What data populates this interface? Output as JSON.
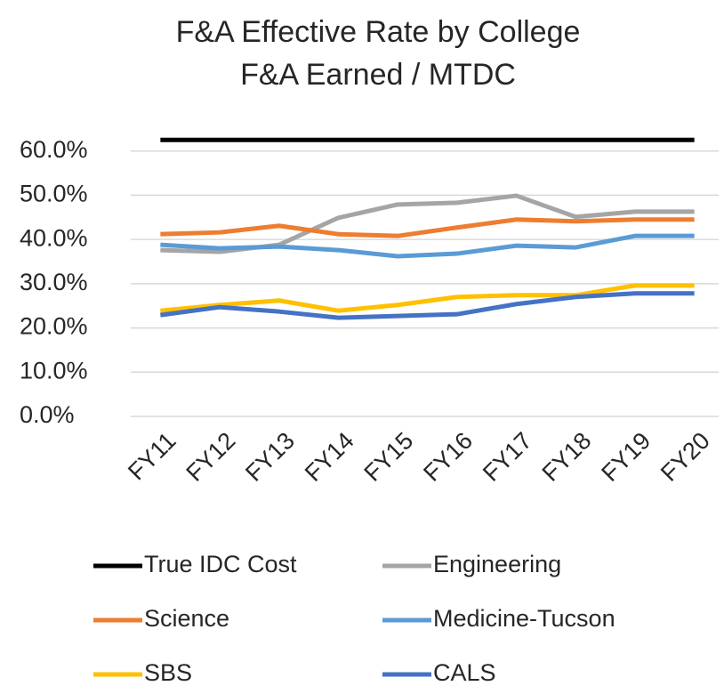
{
  "chart_data": {
    "type": "line",
    "title": "F&A Effective Rate by College",
    "subtitle": "F&A Earned / MTDC",
    "categories": [
      "FY11",
      "FY12",
      "FY13",
      "FY14",
      "FY15",
      "FY16",
      "FY17",
      "FY18",
      "FY19",
      "FY20"
    ],
    "series": [
      {
        "name": "True IDC Cost",
        "color": "#000000",
        "values": [
          62.5,
          62.5,
          62.5,
          62.5,
          62.5,
          62.5,
          62.5,
          62.5,
          62.5,
          62.5
        ]
      },
      {
        "name": "Engineering",
        "color": "#a5a5a5",
        "values": [
          37.6,
          37.2,
          38.8,
          44.9,
          47.9,
          48.3,
          49.9,
          45.1,
          46.3,
          46.3
        ]
      },
      {
        "name": "Science",
        "color": "#ed7d31",
        "values": [
          41.2,
          41.6,
          43.1,
          41.2,
          40.8,
          42.7,
          44.5,
          44.1,
          44.5,
          44.5
        ]
      },
      {
        "name": "Medicine-Tucson",
        "color": "#5b9bd5",
        "values": [
          38.8,
          38.0,
          38.4,
          37.6,
          36.2,
          36.8,
          38.6,
          38.2,
          40.8,
          40.8
        ]
      },
      {
        "name": "SBS",
        "color": "#ffc000",
        "values": [
          23.9,
          25.2,
          26.2,
          23.9,
          25.2,
          27.0,
          27.4,
          27.4,
          29.6,
          29.6
        ]
      },
      {
        "name": "CALS",
        "color": "#4472c4",
        "values": [
          22.9,
          24.7,
          23.7,
          22.3,
          22.7,
          23.1,
          25.4,
          27.0,
          27.8,
          27.8
        ]
      }
    ],
    "ylim": [
      0,
      70
    ],
    "yticks": [
      {
        "value": 0,
        "label": "0.0%"
      },
      {
        "value": 10,
        "label": "10.0%"
      },
      {
        "value": 20,
        "label": "20.0%"
      },
      {
        "value": 30,
        "label": "30.0%"
      },
      {
        "value": 40,
        "label": "40.0%"
      },
      {
        "value": 50,
        "label": "50.0%"
      },
      {
        "value": 60,
        "label": "60.0%"
      }
    ],
    "grid": true
  }
}
